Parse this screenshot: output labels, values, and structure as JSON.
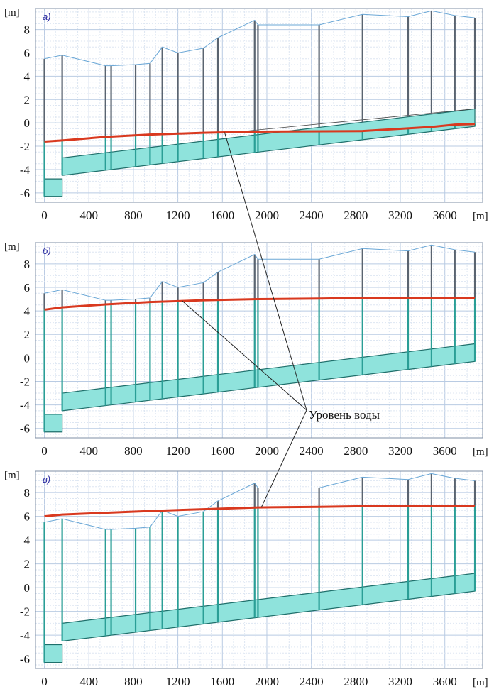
{
  "colors": {
    "water": "#d9391f",
    "bed_fill": "#8fe3dc",
    "bed_stroke": "#1f6f6b",
    "terrain": "#6aa7d6",
    "ramp": "#444444",
    "grid": "#b9cbe3",
    "grid_minor": "#dde6f2"
  },
  "annotation": {
    "text": "Уровень воды"
  },
  "terrain": {
    "x": [
      0,
      160,
      550,
      600,
      820,
      950,
      1060,
      1200,
      1430,
      1560,
      1890,
      1920,
      2470,
      2860,
      3270,
      3480,
      3690,
      3870
    ],
    "y": [
      5.5,
      5.8,
      4.9,
      4.9,
      5.0,
      5.1,
      6.5,
      6.0,
      6.4,
      7.3,
      8.8,
      8.4,
      8.4,
      9.3,
      9.1,
      9.6,
      9.2,
      9.0
    ]
  },
  "bed": {
    "x": [
      0,
      160,
      160,
      3870
    ],
    "top": [
      -4.8,
      -4.8,
      -3.0,
      1.2
    ],
    "bottom": [
      -6.3,
      -6.3,
      -4.5,
      -0.3
    ]
  },
  "wells_x": [
    0,
    160,
    550,
    600,
    820,
    950,
    1060,
    1200,
    1430,
    1560,
    1890,
    1920,
    2470,
    2860,
    3270,
    3480,
    3690,
    3870
  ],
  "chart_data": [
    {
      "type": "line",
      "panel_label": "а)",
      "ylabel": "[m]",
      "xlabel": "[m]",
      "xlim": [
        -80,
        3940
      ],
      "ylim": [
        -6.8,
        9.8
      ],
      "x_ticks": [
        0,
        400,
        800,
        1200,
        1600,
        2000,
        2400,
        2800,
        3200,
        3600
      ],
      "y_ticks": [
        -6,
        -4,
        -2,
        0,
        2,
        4,
        6,
        8
      ],
      "grid": true,
      "series": [
        {
          "name": "Уровень воды",
          "x": [
            0,
            160,
            550,
            950,
            1430,
            1920,
            2860,
            3480,
            3690,
            3870
          ],
          "y": [
            -1.6,
            -1.5,
            -1.2,
            -1.0,
            -0.85,
            -0.75,
            -0.7,
            -0.35,
            -0.15,
            -0.1
          ]
        }
      ]
    },
    {
      "type": "line",
      "panel_label": "б)",
      "ylabel": "[m]",
      "xlabel": "[m]",
      "xlim": [
        -80,
        3940
      ],
      "ylim": [
        -6.8,
        9.8
      ],
      "x_ticks": [
        0,
        400,
        800,
        1200,
        1600,
        2000,
        2400,
        2800,
        3200,
        3600
      ],
      "y_ticks": [
        -6,
        -4,
        -2,
        0,
        2,
        4,
        6,
        8
      ],
      "grid": true,
      "series": [
        {
          "name": "Уровень воды",
          "x": [
            0,
            160,
            550,
            950,
            1430,
            1920,
            2470,
            2860,
            3480,
            3870
          ],
          "y": [
            4.1,
            4.3,
            4.55,
            4.75,
            4.9,
            5.0,
            5.05,
            5.1,
            5.1,
            5.1
          ]
        }
      ]
    },
    {
      "type": "line",
      "panel_label": "в)",
      "ylabel": "[m]",
      "xlabel": "[m]",
      "xlim": [
        -80,
        3940
      ],
      "ylim": [
        -6.8,
        9.8
      ],
      "x_ticks": [
        0,
        400,
        800,
        1200,
        1600,
        2000,
        2400,
        2800,
        3200,
        3600
      ],
      "y_ticks": [
        -6,
        -4,
        -2,
        0,
        2,
        4,
        6,
        8
      ],
      "grid": true,
      "series": [
        {
          "name": "Уровень воды",
          "x": [
            0,
            160,
            550,
            950,
            1430,
            1920,
            2470,
            2860,
            3480,
            3870
          ],
          "y": [
            6.0,
            6.15,
            6.3,
            6.45,
            6.6,
            6.75,
            6.8,
            6.85,
            6.9,
            6.9
          ]
        }
      ]
    }
  ]
}
